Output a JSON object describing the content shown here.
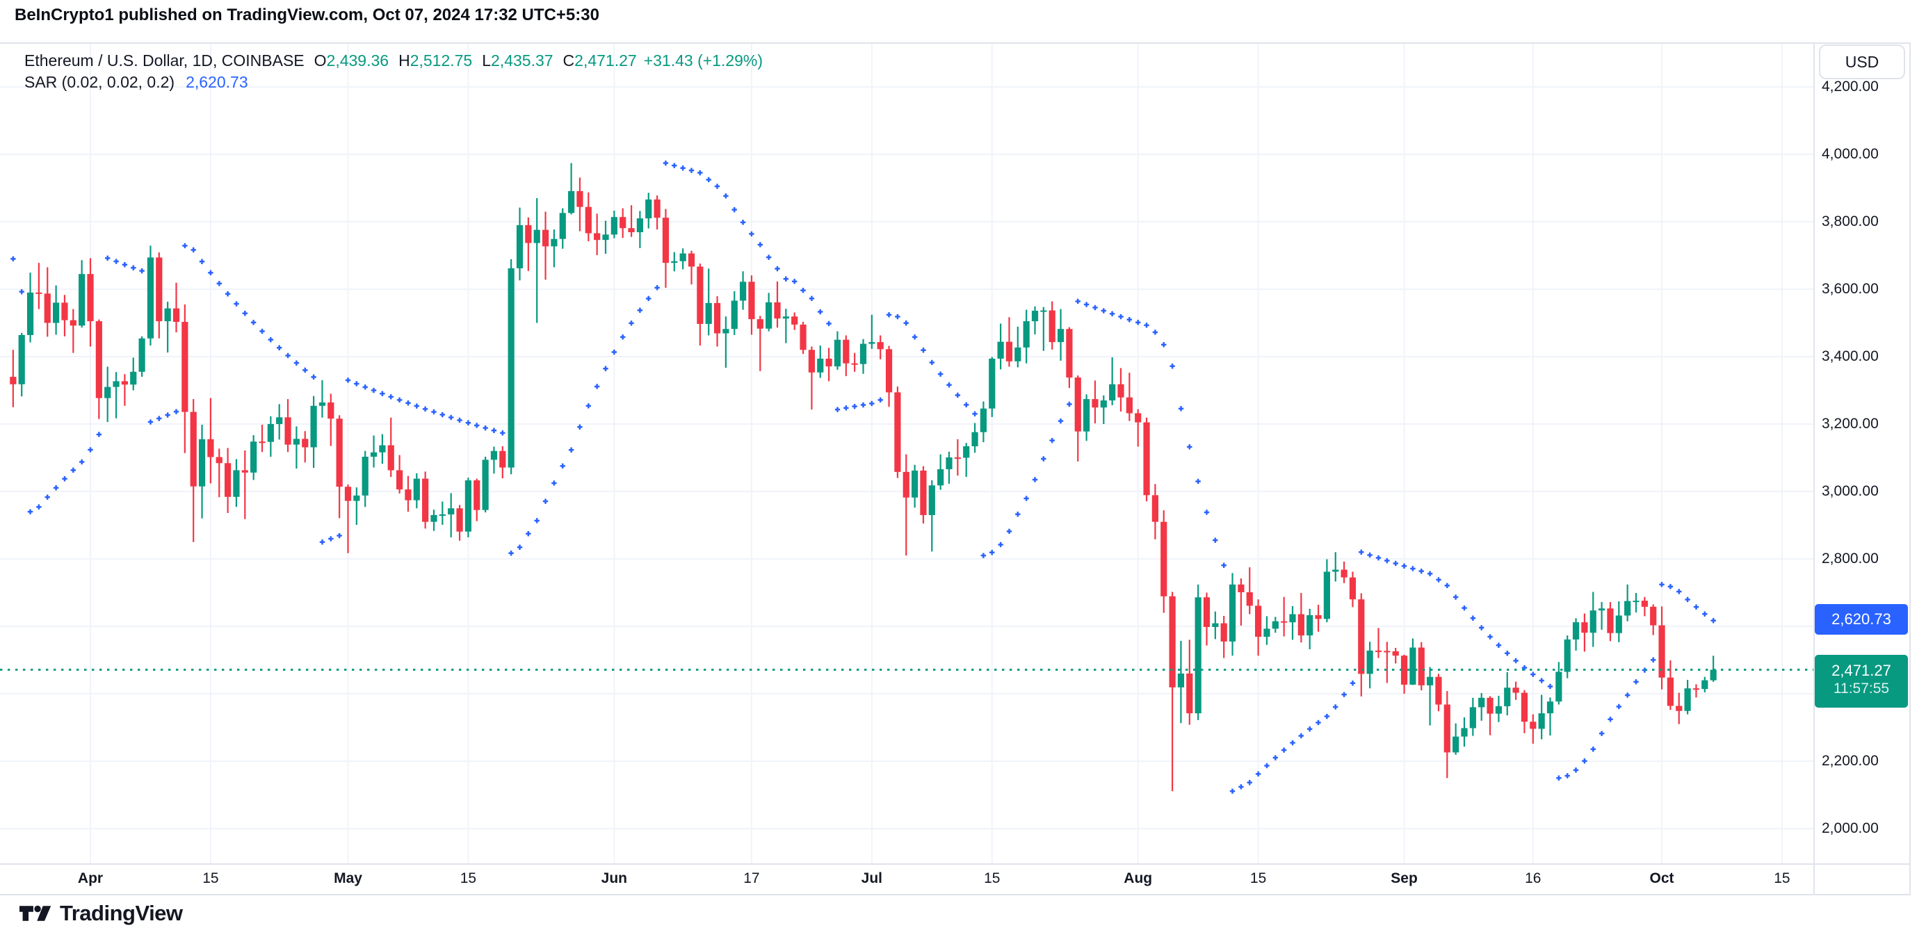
{
  "header": {
    "publish_info": "BeInCrypto1 published on TradingView.com, Oct 07, 2024 17:32 UTC+5:30"
  },
  "legend": {
    "symbol_title": "Ethereum / U.S. Dollar, 1D, COINBASE",
    "ohlc": [
      {
        "k": "O",
        "v": "2,439.36"
      },
      {
        "k": "H",
        "v": "2,512.75"
      },
      {
        "k": "L",
        "v": "2,435.37"
      },
      {
        "k": "C",
        "v": "2,471.27"
      }
    ],
    "change": "+31.43 (+1.29%)",
    "sar_label": "SAR (0.02, 0.02, 0.2)",
    "sar_value": "2,620.73"
  },
  "price_axis": {
    "currency_button": "USD",
    "sar_badge": "2,620.73",
    "price_badge": "2,471.27",
    "countdown": "11:57:55"
  },
  "footer": {
    "brand": "TradingView"
  },
  "colors": {
    "up": "#089981",
    "down": "#f23645",
    "sar_dot": "#2962ff",
    "grid": "#f0f3fa",
    "border": "#e0e3eb",
    "text": "#131722",
    "price_line": "#089981",
    "sar_badge_bg": "#2962ff",
    "price_badge_bg": "#089981"
  },
  "chart_data": {
    "type": "candlestick",
    "title": "Ethereum / U.S. Dollar",
    "interval": "1D",
    "exchange": "COINBASE",
    "last_price": 2471.27,
    "indicator": {
      "name": "SAR",
      "params": [
        0.02,
        0.02,
        0.2
      ],
      "last_value": 2620.73,
      "seed": {
        "trend": "down",
        "sar": 3690,
        "ep": 2940,
        "af": 0.13
      }
    },
    "y_axis": {
      "min": 2000,
      "max": 4200,
      "step": 200,
      "grid": true,
      "side": "right"
    },
    "x_axis": {
      "ticks": [
        {
          "label": "Apr",
          "date": "2024-04-01",
          "bold": true
        },
        {
          "label": "15",
          "date": "2024-04-15",
          "bold": false
        },
        {
          "label": "May",
          "date": "2024-05-01",
          "bold": true
        },
        {
          "label": "15",
          "date": "2024-05-15",
          "bold": false
        },
        {
          "label": "Jun",
          "date": "2024-06-01",
          "bold": true
        },
        {
          "label": "17",
          "date": "2024-06-17",
          "bold": false
        },
        {
          "label": "Jul",
          "date": "2024-07-01",
          "bold": true
        },
        {
          "label": "15",
          "date": "2024-07-15",
          "bold": false
        },
        {
          "label": "Aug",
          "date": "2024-08-01",
          "bold": true
        },
        {
          "label": "15",
          "date": "2024-08-15",
          "bold": false
        },
        {
          "label": "Sep",
          "date": "2024-09-01",
          "bold": true
        },
        {
          "label": "16",
          "date": "2024-09-16",
          "bold": false
        },
        {
          "label": "Oct",
          "date": "2024-10-01",
          "bold": true
        },
        {
          "label": "15",
          "date": "2024-10-15",
          "bold": false
        }
      ]
    },
    "open_rule": "previous_close",
    "first_open": 3340,
    "candles": [
      [
        "03-23",
        3420,
        3250,
        3318
      ],
      [
        "03-24",
        3470,
        3282,
        3464
      ],
      [
        "03-25",
        3649,
        3442,
        3590
      ],
      [
        "03-26",
        3678,
        3541,
        3587
      ],
      [
        "03-27",
        3665,
        3459,
        3500
      ],
      [
        "03-28",
        3611,
        3465,
        3560
      ],
      [
        "03-29",
        3583,
        3460,
        3508
      ],
      [
        "03-30",
        3541,
        3411,
        3492
      ],
      [
        "03-31",
        3686,
        3486,
        3645
      ],
      [
        "04-01",
        3692,
        3430,
        3505
      ],
      [
        "04-02",
        3510,
        3215,
        3277
      ],
      [
        "04-03",
        3370,
        3206,
        3310
      ],
      [
        "04-04",
        3354,
        3217,
        3327
      ],
      [
        "04-05",
        3348,
        3254,
        3317
      ],
      [
        "04-06",
        3397,
        3300,
        3355
      ],
      [
        "04-07",
        3460,
        3340,
        3454
      ],
      [
        "04-08",
        3729,
        3433,
        3694
      ],
      [
        "04-09",
        3709,
        3454,
        3505
      ],
      [
        "04-10",
        3563,
        3412,
        3543
      ],
      [
        "04-11",
        3619,
        3472,
        3503
      ],
      [
        "04-12",
        3555,
        3114,
        3236
      ],
      [
        "04-13",
        3274,
        2850,
        3015
      ],
      [
        "04-14",
        3198,
        2920,
        3155
      ],
      [
        "04-15",
        3277,
        3024,
        3102
      ],
      [
        "04-16",
        3127,
        2983,
        3084
      ],
      [
        "04-17",
        3129,
        2936,
        2984
      ],
      [
        "04-18",
        3096,
        2954,
        3063
      ],
      [
        "04-19",
        3122,
        2918,
        3056
      ],
      [
        "04-20",
        3167,
        3034,
        3148
      ],
      [
        "04-21",
        3198,
        3117,
        3147
      ],
      [
        "04-22",
        3223,
        3103,
        3200
      ],
      [
        "04-23",
        3259,
        3154,
        3220
      ],
      [
        "04-24",
        3274,
        3117,
        3139
      ],
      [
        "04-25",
        3193,
        3068,
        3156
      ],
      [
        "04-26",
        3179,
        3086,
        3131
      ],
      [
        "04-27",
        3283,
        3070,
        3254
      ],
      [
        "04-28",
        3330,
        3219,
        3264
      ],
      [
        "04-29",
        3290,
        3135,
        3216
      ],
      [
        "04-30",
        3226,
        2921,
        3014
      ],
      [
        "05-01",
        3021,
        2817,
        2972
      ],
      [
        "05-02",
        3012,
        2901,
        2988
      ],
      [
        "05-03",
        3120,
        2954,
        3103
      ],
      [
        "05-04",
        3166,
        3071,
        3116
      ],
      [
        "05-05",
        3170,
        3082,
        3137
      ],
      [
        "05-06",
        3219,
        3043,
        3063
      ],
      [
        "05-07",
        3108,
        2994,
        3006
      ],
      [
        "05-08",
        3046,
        2940,
        2974
      ],
      [
        "05-09",
        3054,
        2950,
        3038
      ],
      [
        "05-10",
        3059,
        2890,
        2910
      ],
      [
        "05-11",
        2946,
        2883,
        2930
      ],
      [
        "05-12",
        2970,
        2901,
        2932
      ],
      [
        "05-13",
        2995,
        2864,
        2950
      ],
      [
        "05-14",
        2960,
        2854,
        2881
      ],
      [
        "05-15",
        3041,
        2864,
        3033
      ],
      [
        "05-16",
        3038,
        2912,
        2945
      ],
      [
        "05-17",
        3103,
        2938,
        3094
      ],
      [
        "05-18",
        3133,
        3053,
        3120
      ],
      [
        "05-19",
        3134,
        3039,
        3071
      ],
      [
        "05-20",
        3689,
        3051,
        3662
      ],
      [
        "05-21",
        3842,
        3626,
        3790
      ],
      [
        "05-22",
        3813,
        3654,
        3737
      ],
      [
        "05-23",
        3870,
        3500,
        3776
      ],
      [
        "05-24",
        3830,
        3628,
        3727
      ],
      [
        "05-25",
        3777,
        3665,
        3749
      ],
      [
        "05-26",
        3840,
        3720,
        3826
      ],
      [
        "05-27",
        3974,
        3822,
        3891
      ],
      [
        "05-28",
        3931,
        3772,
        3844
      ],
      [
        "05-29",
        3887,
        3742,
        3766
      ],
      [
        "05-30",
        3824,
        3701,
        3746
      ],
      [
        "05-31",
        3803,
        3705,
        3762
      ],
      [
        "06-01",
        3833,
        3751,
        3814
      ],
      [
        "06-02",
        3840,
        3752,
        3781
      ],
      [
        "06-03",
        3849,
        3755,
        3769
      ],
      [
        "06-04",
        3832,
        3722,
        3810
      ],
      [
        "06-05",
        3886,
        3780,
        3866
      ],
      [
        "06-06",
        3878,
        3777,
        3812
      ],
      [
        "06-07",
        3838,
        3604,
        3678
      ],
      [
        "06-08",
        3710,
        3653,
        3683
      ],
      [
        "06-09",
        3721,
        3659,
        3706
      ],
      [
        "06-10",
        3714,
        3614,
        3667
      ],
      [
        "06-11",
        3676,
        3433,
        3497
      ],
      [
        "06-12",
        3661,
        3463,
        3559
      ],
      [
        "06-13",
        3579,
        3430,
        3469
      ],
      [
        "06-14",
        3519,
        3367,
        3482
      ],
      [
        "06-15",
        3594,
        3464,
        3566
      ],
      [
        "06-16",
        3653,
        3539,
        3622
      ],
      [
        "06-17",
        3641,
        3465,
        3511
      ],
      [
        "06-18",
        3521,
        3357,
        3483
      ],
      [
        "06-19",
        3589,
        3475,
        3561
      ],
      [
        "06-20",
        3623,
        3486,
        3513
      ],
      [
        "06-21",
        3542,
        3440,
        3519
      ],
      [
        "06-22",
        3531,
        3479,
        3495
      ],
      [
        "06-23",
        3503,
        3408,
        3420
      ],
      [
        "06-24",
        3430,
        3243,
        3353
      ],
      [
        "06-25",
        3433,
        3337,
        3394
      ],
      [
        "06-26",
        3426,
        3327,
        3371
      ],
      [
        "06-27",
        3475,
        3361,
        3450
      ],
      [
        "06-28",
        3463,
        3342,
        3380
      ],
      [
        "06-29",
        3411,
        3355,
        3378
      ],
      [
        "06-30",
        3452,
        3349,
        3438
      ],
      [
        "07-01",
        3524,
        3423,
        3443
      ],
      [
        "07-02",
        3463,
        3392,
        3422
      ],
      [
        "07-03",
        3432,
        3251,
        3294
      ],
      [
        "07-04",
        3311,
        3040,
        3058
      ],
      [
        "07-05",
        3110,
        2810,
        2982
      ],
      [
        "07-06",
        3079,
        2952,
        3062
      ],
      [
        "07-07",
        3075,
        2905,
        2930
      ],
      [
        "07-08",
        3033,
        2822,
        3018
      ],
      [
        "07-09",
        3110,
        3005,
        3066
      ],
      [
        "07-10",
        3118,
        3023,
        3101
      ],
      [
        "07-11",
        3155,
        3047,
        3100
      ],
      [
        "07-12",
        3144,
        3043,
        3134
      ],
      [
        "07-13",
        3203,
        3115,
        3176
      ],
      [
        "07-14",
        3267,
        3146,
        3246
      ],
      [
        "07-15",
        3399,
        3221,
        3394
      ],
      [
        "07-16",
        3498,
        3362,
        3444
      ],
      [
        "07-17",
        3517,
        3370,
        3386
      ],
      [
        "07-18",
        3489,
        3368,
        3427
      ],
      [
        "07-19",
        3539,
        3380,
        3505
      ],
      [
        "07-20",
        3549,
        3466,
        3536
      ],
      [
        "07-21",
        3547,
        3417,
        3537
      ],
      [
        "07-22",
        3564,
        3421,
        3443
      ],
      [
        "07-23",
        3541,
        3388,
        3482
      ],
      [
        "07-24",
        3487,
        3307,
        3338
      ],
      [
        "07-25",
        3344,
        3089,
        3178
      ],
      [
        "07-26",
        3288,
        3150,
        3274
      ],
      [
        "07-27",
        3329,
        3202,
        3249
      ],
      [
        "07-28",
        3285,
        3200,
        3270
      ],
      [
        "07-29",
        3398,
        3256,
        3318
      ],
      [
        "07-30",
        3366,
        3237,
        3279
      ],
      [
        "07-31",
        3352,
        3209,
        3232
      ],
      [
        "08-01",
        3244,
        3133,
        3205
      ],
      [
        "08-02",
        3219,
        2971,
        2989
      ],
      [
        "08-03",
        3022,
        2858,
        2910
      ],
      [
        "08-04",
        2944,
        2640,
        2689
      ],
      [
        "08-05",
        2702,
        2111,
        2419
      ],
      [
        "08-06",
        2557,
        2313,
        2460
      ],
      [
        "08-07",
        2560,
        2308,
        2342
      ],
      [
        "08-08",
        2724,
        2322,
        2686
      ],
      [
        "08-09",
        2700,
        2543,
        2598
      ],
      [
        "08-10",
        2644,
        2562,
        2609
      ],
      [
        "08-11",
        2631,
        2506,
        2555
      ],
      [
        "08-12",
        2758,
        2513,
        2724
      ],
      [
        "08-13",
        2742,
        2602,
        2701
      ],
      [
        "08-14",
        2775,
        2636,
        2661
      ],
      [
        "08-15",
        2680,
        2513,
        2569
      ],
      [
        "08-16",
        2630,
        2545,
        2593
      ],
      [
        "08-17",
        2628,
        2581,
        2615
      ],
      [
        "08-18",
        2687,
        2570,
        2612
      ],
      [
        "08-19",
        2660,
        2560,
        2636
      ],
      [
        "08-20",
        2699,
        2552,
        2573
      ],
      [
        "08-21",
        2652,
        2532,
        2633
      ],
      [
        "08-22",
        2664,
        2584,
        2622
      ],
      [
        "08-23",
        2799,
        2612,
        2762
      ],
      [
        "08-24",
        2820,
        2733,
        2768
      ],
      [
        "08-25",
        2792,
        2728,
        2745
      ],
      [
        "08-26",
        2762,
        2657,
        2680
      ],
      [
        "08-27",
        2698,
        2392,
        2459
      ],
      [
        "08-28",
        2554,
        2416,
        2528
      ],
      [
        "08-29",
        2595,
        2506,
        2527
      ],
      [
        "08-30",
        2554,
        2432,
        2526
      ],
      [
        "08-31",
        2536,
        2490,
        2513
      ],
      [
        "09-01",
        2516,
        2400,
        2427
      ],
      [
        "09-02",
        2564,
        2426,
        2537
      ],
      [
        "09-03",
        2553,
        2410,
        2425
      ],
      [
        "09-04",
        2479,
        2306,
        2450
      ],
      [
        "09-05",
        2459,
        2348,
        2368
      ],
      [
        "09-06",
        2408,
        2150,
        2226
      ],
      [
        "09-07",
        2312,
        2219,
        2273
      ],
      [
        "09-08",
        2330,
        2243,
        2298
      ],
      [
        "09-09",
        2388,
        2275,
        2360
      ],
      [
        "09-10",
        2402,
        2320,
        2388
      ],
      [
        "09-11",
        2393,
        2277,
        2341
      ],
      [
        "09-12",
        2394,
        2316,
        2363
      ],
      [
        "09-13",
        2464,
        2336,
        2418
      ],
      [
        "09-14",
        2436,
        2382,
        2403
      ],
      [
        "09-15",
        2411,
        2283,
        2317
      ],
      [
        "09-16",
        2339,
        2252,
        2296
      ],
      [
        "09-17",
        2397,
        2265,
        2342
      ],
      [
        "09-18",
        2389,
        2276,
        2377
      ],
      [
        "09-19",
        2494,
        2368,
        2465
      ],
      [
        "09-20",
        2573,
        2446,
        2561
      ],
      [
        "09-21",
        2624,
        2528,
        2612
      ],
      [
        "09-22",
        2638,
        2525,
        2581
      ],
      [
        "09-23",
        2702,
        2539,
        2647
      ],
      [
        "09-24",
        2672,
        2590,
        2653
      ],
      [
        "09-25",
        2672,
        2556,
        2580
      ],
      [
        "09-26",
        2674,
        2553,
        2632
      ],
      [
        "09-27",
        2724,
        2615,
        2675
      ],
      [
        "09-28",
        2699,
        2641,
        2676
      ],
      [
        "09-29",
        2687,
        2630,
        2658
      ],
      [
        "09-30",
        2665,
        2574,
        2603
      ],
      [
        "10-01",
        2659,
        2413,
        2448
      ],
      [
        "10-02",
        2499,
        2352,
        2364
      ],
      [
        "10-03",
        2403,
        2310,
        2349
      ],
      [
        "10-04",
        2441,
        2339,
        2416
      ],
      [
        "10-05",
        2428,
        2389,
        2414
      ],
      [
        "10-06",
        2450,
        2404,
        2440
      ],
      [
        "10-07",
        2512.75,
        2435.37,
        2471.27
      ]
    ]
  }
}
